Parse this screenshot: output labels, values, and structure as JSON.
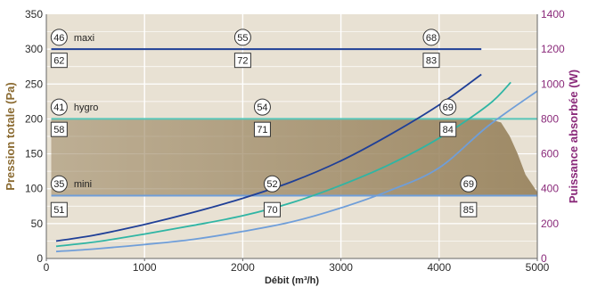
{
  "colors": {
    "plot_bg": "#e8e1d3",
    "grid": "#ffffff",
    "fill_area": "#9a8560",
    "maxi_line": "#1f3f97",
    "hygro_line": "#58c6b9",
    "mini_line": "#6f9ed9",
    "curve_dark": "#1f3f97",
    "curve_teal": "#2fb5a4",
    "curve_light": "#6f9ed9",
    "left_axis_title": "#8a6a30",
    "right_axis_title": "#8a2a7a"
  },
  "chart_data": {
    "type": "line",
    "xlabel": "Débit (m³/h)",
    "ylabel": "Pression totale (Pa)",
    "y2label": "Puissance absorbée (W)",
    "xlim": [
      0,
      5000
    ],
    "ylim": [
      0,
      350
    ],
    "y2lim": [
      0,
      1400
    ],
    "x_ticks": [
      "0",
      "1000",
      "2000",
      "3000",
      "4000",
      "5000"
    ],
    "y_ticks": [
      "0",
      "50",
      "100",
      "150",
      "200",
      "250",
      "300",
      "350"
    ],
    "y2_ticks": [
      "0",
      "200",
      "400",
      "600",
      "800",
      "1000",
      "1200",
      "1400"
    ],
    "grid": true,
    "shaded_region": {
      "x": [
        50,
        4500,
        4630,
        4720,
        4800,
        4880,
        5000,
        5000,
        50
      ],
      "y": [
        200,
        200,
        195,
        175,
        150,
        120,
        95,
        90,
        90
      ]
    },
    "mode_lines": [
      {
        "label": "maxi",
        "x": [
          50,
          4430
        ],
        "y": [
          300,
          300
        ],
        "color_key": "maxi_line"
      },
      {
        "label": "hygro",
        "x": [
          50,
          5000
        ],
        "y": [
          200,
          200
        ],
        "color_key": "hygro_line"
      },
      {
        "label": "mini",
        "x": [
          50,
          5000
        ],
        "y": [
          90,
          90
        ],
        "color_key": "mini_line"
      }
    ],
    "series": [
      {
        "axis": "right",
        "color_key": "curve_dark",
        "x": [
          100,
          500,
          1000,
          1500,
          2000,
          2500,
          3000,
          3500,
          4000,
          4430
        ],
        "y": [
          100,
          135,
          195,
          265,
          345,
          440,
          560,
          710,
          880,
          1055
        ]
      },
      {
        "axis": "right",
        "color_key": "curve_teal",
        "x": [
          100,
          500,
          1000,
          1500,
          2000,
          2500,
          3000,
          3500,
          4000,
          4500,
          4730
        ],
        "y": [
          70,
          95,
          140,
          190,
          245,
          320,
          420,
          540,
          690,
          880,
          1010
        ]
      },
      {
        "axis": "right",
        "color_key": "curve_light",
        "x": [
          100,
          500,
          1000,
          1500,
          2000,
          2500,
          3000,
          3500,
          4000,
          4500,
          5000
        ],
        "y": [
          40,
          55,
          80,
          110,
          155,
          210,
          290,
          390,
          520,
          760,
          960
        ]
      }
    ],
    "annotations": {
      "circles": [
        {
          "text": "46",
          "x": 130,
          "y": 317
        },
        {
          "text": "55",
          "x": 2000,
          "y": 317
        },
        {
          "text": "68",
          "x": 3920,
          "y": 317
        },
        {
          "text": "41",
          "x": 130,
          "y": 217
        },
        {
          "text": "54",
          "x": 2200,
          "y": 217
        },
        {
          "text": "69",
          "x": 4090,
          "y": 217
        },
        {
          "text": "35",
          "x": 130,
          "y": 107
        },
        {
          "text": "52",
          "x": 2300,
          "y": 107
        },
        {
          "text": "69",
          "x": 4300,
          "y": 107
        }
      ],
      "boxes": [
        {
          "text": "62",
          "x": 130,
          "y": 284
        },
        {
          "text": "72",
          "x": 2000,
          "y": 284
        },
        {
          "text": "83",
          "x": 3920,
          "y": 284
        },
        {
          "text": "58",
          "x": 130,
          "y": 185
        },
        {
          "text": "71",
          "x": 2200,
          "y": 185
        },
        {
          "text": "84",
          "x": 4090,
          "y": 185
        },
        {
          "text": "51",
          "x": 130,
          "y": 70
        },
        {
          "text": "70",
          "x": 2300,
          "y": 70
        },
        {
          "text": "85",
          "x": 4300,
          "y": 70
        }
      ],
      "mode_labels": [
        {
          "text": "maxi",
          "x": 280,
          "y": 317
        },
        {
          "text": "hygro",
          "x": 280,
          "y": 217
        },
        {
          "text": "mini",
          "x": 280,
          "y": 107
        }
      ]
    }
  }
}
